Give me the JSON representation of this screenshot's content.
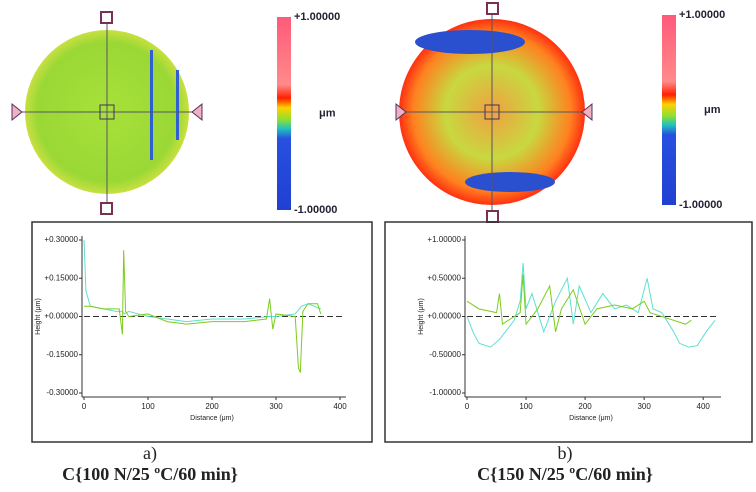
{
  "chart_data": [
    {
      "type": "line",
      "panel_label": "a)",
      "caption": "C{100 N/25 ºC/60 min}",
      "colorbar": {
        "max_label": "+1.00000",
        "unit": "μm",
        "min_label": "-1.00000"
      },
      "xlabel": "Distance (μm)",
      "ylabel": "Height (μm)",
      "xlim": [
        0,
        400
      ],
      "xticks": [
        0,
        100,
        200,
        300,
        400
      ],
      "ylim": [
        -0.3,
        0.3
      ],
      "yticks": [
        {
          "value": 0.3,
          "label": "+0.30000"
        },
        {
          "value": 0.15,
          "label": "+0.15000"
        },
        {
          "value": 0,
          "label": "+0.00000"
        },
        {
          "value": -0.15,
          "label": "-0.15000"
        },
        {
          "value": -0.3,
          "label": "-0.30000"
        }
      ],
      "zero_line": 0,
      "series": [
        {
          "color": "#5ee0d0",
          "x": [
            0,
            3,
            10,
            30,
            50,
            60,
            63,
            70,
            100,
            130,
            160,
            200,
            250,
            290,
            300,
            330,
            340,
            350,
            370
          ],
          "values": [
            0.3,
            0.1,
            0.04,
            0.03,
            0.02,
            0.02,
            0.01,
            0.02,
            0.0,
            -0.01,
            -0.02,
            -0.01,
            -0.01,
            0.0,
            0.0,
            0.01,
            0.04,
            0.05,
            0.03
          ]
        },
        {
          "color": "#7ccc1c",
          "x": [
            0,
            10,
            30,
            55,
            60,
            62,
            65,
            70,
            100,
            130,
            160,
            200,
            250,
            285,
            290,
            295,
            300,
            330,
            335,
            338,
            342,
            350,
            365,
            370
          ],
          "values": [
            0.04,
            0.04,
            0.03,
            0.03,
            -0.07,
            0.26,
            0.02,
            0.0,
            0.01,
            -0.02,
            -0.03,
            -0.02,
            -0.02,
            -0.01,
            0.07,
            -0.05,
            0.01,
            0.0,
            -0.2,
            -0.22,
            0.02,
            0.05,
            0.05,
            0.01
          ]
        }
      ]
    },
    {
      "type": "line",
      "panel_label": "b)",
      "caption": "C{150 N/25 ºC/60 min}",
      "colorbar": {
        "max_label": "+1.00000",
        "unit": "μm",
        "min_label": "-1.00000"
      },
      "xlabel": "Distance (μm)",
      "ylabel": "Height (μm)",
      "xlim": [
        0,
        420
      ],
      "xticks": [
        0,
        100,
        200,
        300,
        400
      ],
      "ylim": [
        -1,
        1
      ],
      "yticks": [
        {
          "value": 1,
          "label": "+1.00000"
        },
        {
          "value": 0.5,
          "label": "+0.50000"
        },
        {
          "value": 0,
          "label": "+0.00000"
        },
        {
          "value": -0.5,
          "label": "-0.50000"
        },
        {
          "value": -1,
          "label": "-1.00000"
        }
      ],
      "zero_line": 0,
      "series": [
        {
          "color": "#5ee0d0",
          "x": [
            0,
            10,
            20,
            40,
            55,
            65,
            80,
            90,
            95,
            100,
            110,
            130,
            150,
            170,
            180,
            190,
            210,
            230,
            250,
            270,
            290,
            305,
            315,
            330,
            350,
            360,
            375,
            390,
            405,
            420
          ],
          "values": [
            0.0,
            -0.2,
            -0.35,
            -0.4,
            -0.3,
            -0.2,
            -0.05,
            0.2,
            0.7,
            0.1,
            0.3,
            -0.2,
            0.2,
            0.5,
            -0.1,
            0.4,
            0.05,
            0.3,
            0.1,
            0.15,
            0.05,
            0.5,
            0.1,
            0.05,
            -0.2,
            -0.35,
            -0.4,
            -0.38,
            -0.2,
            -0.05
          ]
        },
        {
          "color": "#7ccc1c",
          "x": [
            0,
            20,
            50,
            55,
            60,
            90,
            95,
            100,
            120,
            140,
            150,
            160,
            180,
            200,
            220,
            250,
            280,
            300,
            310,
            330,
            350,
            370,
            380
          ],
          "values": [
            0.2,
            0.1,
            0.05,
            0.3,
            -0.1,
            0.05,
            0.55,
            -0.1,
            0.1,
            0.4,
            -0.2,
            0.1,
            0.35,
            -0.1,
            0.1,
            0.15,
            0.1,
            0.2,
            0.05,
            0.0,
            -0.05,
            -0.1,
            -0.05
          ]
        }
      ]
    }
  ]
}
